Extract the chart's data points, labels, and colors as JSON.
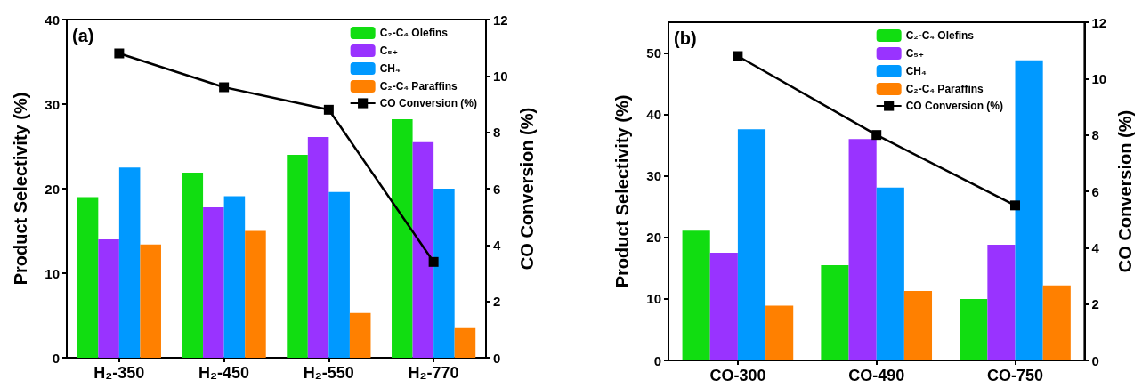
{
  "chart_data": [
    {
      "type": "bar",
      "ylabel": "Product Selectivity (%)",
      "y2label": "CO Conversion (%)",
      "annotations": [
        "(a)"
      ],
      "categories": [
        "H₂-350",
        "H₂-450",
        "H₂-550",
        "H₂-770"
      ],
      "ylim": [
        0,
        40
      ],
      "yticks": [
        0,
        10,
        20,
        30,
        40
      ],
      "y2lim": [
        0,
        12
      ],
      "y2ticks": [
        0,
        2,
        4,
        6,
        8,
        10,
        12
      ],
      "grid": false,
      "legend": "top right",
      "marker": "square",
      "series": [
        {
          "name": "C₂-C₄ Olefins",
          "color": "#11dd11",
          "values": [
            19,
            21.9,
            24,
            28.2
          ]
        },
        {
          "name": "C₅₊",
          "color": "#9933ff",
          "values": [
            14,
            17.8,
            26.1,
            25.5
          ]
        },
        {
          "name": "CH₄",
          "color": "#0099ff",
          "values": [
            22.5,
            19.1,
            19.6,
            20
          ]
        },
        {
          "name": "C₂-C₄ Paraffins",
          "color": "#ff8000",
          "values": [
            13.4,
            15,
            5.3,
            3.5
          ]
        },
        {
          "name": "CO Conversion (%)",
          "type": "line",
          "axis": "y2",
          "color": "#000000",
          "values": [
            10.8,
            9.6,
            8.8,
            3.4
          ]
        }
      ]
    },
    {
      "type": "bar",
      "ylabel": "Product Selectivity (%)",
      "y2label": "CO Conversion (%)",
      "annotations": [
        "(b)"
      ],
      "categories": [
        "CO-300",
        "CO-490",
        "CO-750"
      ],
      "ylim": [
        0,
        55
      ],
      "yticks": [
        0,
        10,
        20,
        30,
        40,
        50
      ],
      "y2lim": [
        0,
        12
      ],
      "y2ticks": [
        0,
        2,
        4,
        6,
        8,
        10,
        12
      ],
      "grid": false,
      "legend": "top right",
      "marker": "square",
      "series": [
        {
          "name": "C₂-C₄ Olefins",
          "color": "#11dd11",
          "values": [
            21.1,
            15.5,
            10
          ]
        },
        {
          "name": "C₅₊",
          "color": "#9933ff",
          "values": [
            17.5,
            36,
            18.8
          ]
        },
        {
          "name": "CH₄",
          "color": "#0099ff",
          "values": [
            37.6,
            28.1,
            48.8
          ]
        },
        {
          "name": "C₂-C₄ Paraffins",
          "color": "#ff8000",
          "values": [
            8.9,
            11.3,
            12.2
          ]
        },
        {
          "name": "CO Conversion (%)",
          "type": "line",
          "axis": "y2",
          "color": "#000000",
          "values": [
            10.8,
            8.0,
            5.5
          ]
        }
      ]
    }
  ]
}
